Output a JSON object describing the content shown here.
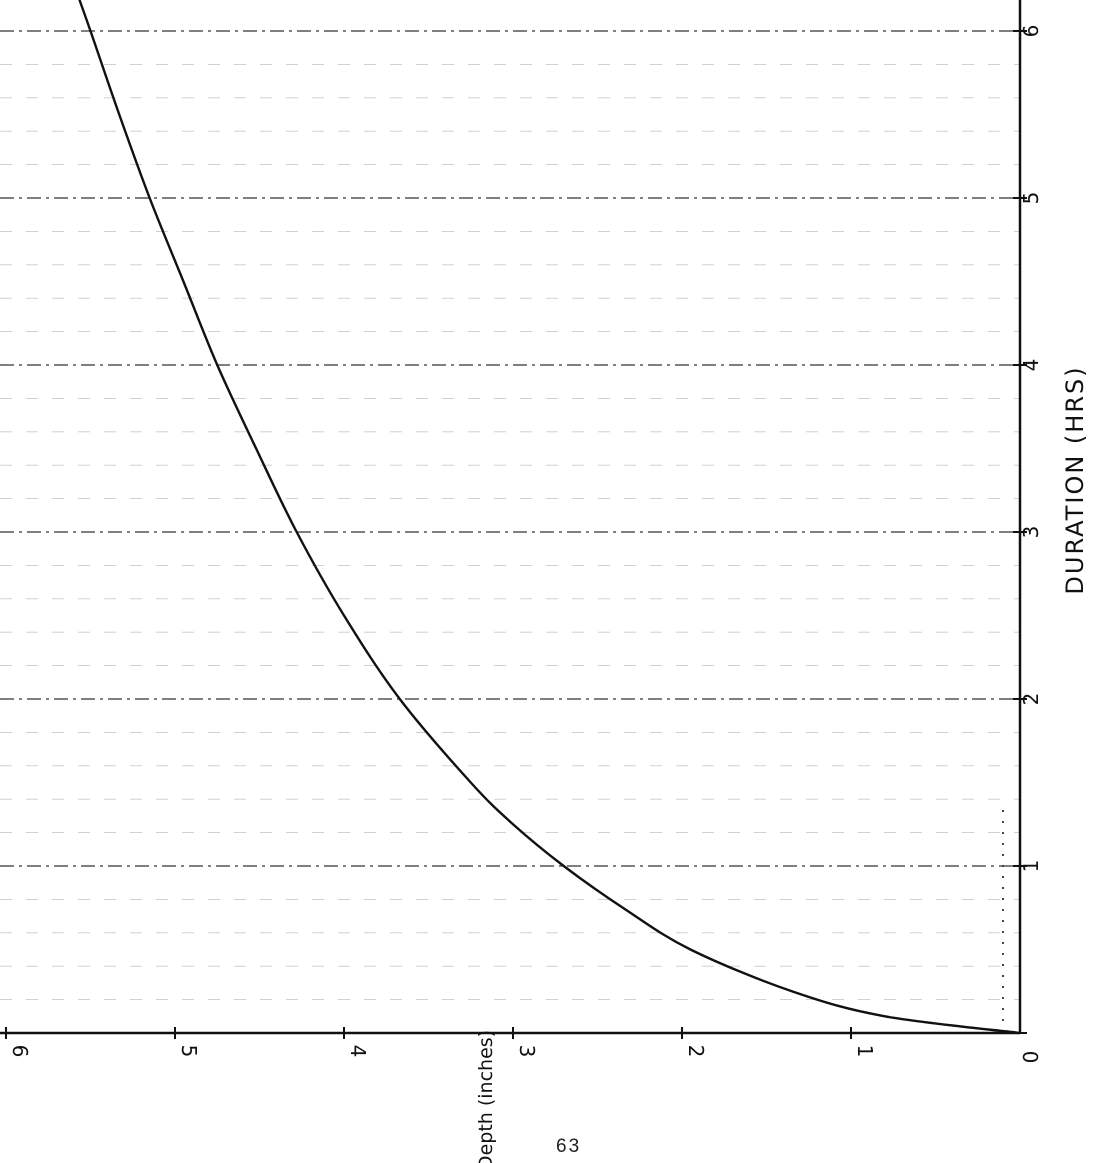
{
  "page_number": "63",
  "chart_data": {
    "type": "line",
    "xlabel": "DURATION (HRS)",
    "ylabel": "Depth (inches)",
    "xlim": [
      0,
      6.2
    ],
    "ylim": [
      0,
      6
    ],
    "x_ticks": [
      "0",
      "1",
      "2",
      "3",
      "4",
      "5",
      "6"
    ],
    "y_ticks": [
      "0",
      "1",
      "2",
      "3",
      "4",
      "5",
      "6"
    ],
    "grid": true,
    "rotated": "90-degrees-clockwise",
    "series": [
      {
        "x": [
          0,
          0.1,
          0.25,
          0.5,
          0.75,
          1.0,
          1.25,
          1.5,
          2.0,
          2.5,
          3.0,
          3.5,
          4.0,
          4.5,
          5.0,
          5.5,
          6.0,
          6.2
        ],
        "y": [
          0,
          0.8,
          1.35,
          1.95,
          2.35,
          2.7,
          3.0,
          3.25,
          3.67,
          4.0,
          4.28,
          4.52,
          4.75,
          4.95,
          5.15,
          5.33,
          5.5,
          5.57
        ]
      }
    ]
  }
}
